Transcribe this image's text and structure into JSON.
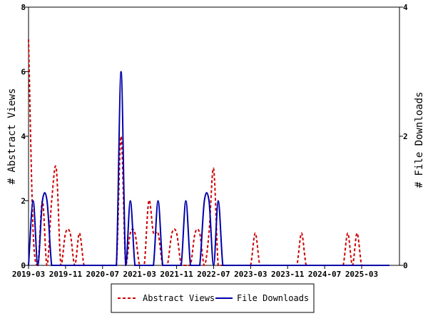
{
  "chart_data": {
    "type": "line",
    "x_ticks": [
      "2019-03",
      "2019-11",
      "2020-07",
      "2021-03",
      "2021-11",
      "2022-07",
      "2023-03",
      "2023-11",
      "2024-07",
      "2025-03"
    ],
    "y_left": {
      "label": "# Abstract Views",
      "range": [
        0,
        8
      ],
      "ticks": [
        0,
        2,
        4,
        6,
        8
      ]
    },
    "y_right": {
      "label": "# File Downloads",
      "range": [
        0,
        4
      ],
      "ticks": [
        0,
        2,
        4
      ]
    },
    "grid": false,
    "legend_position": "bottom",
    "series": [
      {
        "name": "Abstract Views",
        "axis": "left",
        "color": "#cc0000",
        "style": "dashed",
        "x": [
          "2019-03",
          "2019-04",
          "2019-05",
          "2019-06",
          "2019-07",
          "2019-08",
          "2019-09",
          "2019-10",
          "2019-11",
          "2019-12",
          "2020-01",
          "2020-02",
          "2020-03",
          "2020-04",
          "2020-05",
          "2020-06",
          "2020-07",
          "2020-08",
          "2020-09",
          "2020-10",
          "2020-11",
          "2020-12",
          "2021-01",
          "2021-02",
          "2021-03",
          "2021-04",
          "2021-05",
          "2021-06",
          "2021-07",
          "2021-08",
          "2021-09",
          "2021-10",
          "2021-11",
          "2021-12",
          "2022-01",
          "2022-02",
          "2022-03",
          "2022-04",
          "2022-05",
          "2022-06",
          "2022-07",
          "2022-08",
          "2022-09",
          "2022-10",
          "2022-11",
          "2022-12",
          "2023-01",
          "2023-02",
          "2023-03",
          "2023-04",
          "2023-05",
          "2023-06",
          "2023-07",
          "2023-08",
          "2023-09",
          "2023-10",
          "2023-11",
          "2023-12",
          "2024-01",
          "2024-02",
          "2024-03",
          "2024-04",
          "2024-05",
          "2024-06",
          "2024-07",
          "2024-08",
          "2024-09",
          "2024-10",
          "2024-11",
          "2024-12",
          "2025-01",
          "2025-02",
          "2025-03",
          "2025-04",
          "2025-05",
          "2025-06",
          "2025-07",
          "2025-08",
          "2025-09"
        ],
        "values": [
          7,
          1,
          0,
          2,
          0,
          2,
          3,
          0,
          1,
          1,
          0,
          1,
          0,
          0,
          0,
          0,
          0,
          0,
          0,
          0,
          4,
          0,
          1,
          1,
          0,
          0,
          2,
          1,
          1,
          0,
          0,
          1,
          1,
          0,
          0,
          0,
          1,
          1,
          0,
          1,
          3,
          0,
          0,
          0,
          0,
          0,
          0,
          0,
          0,
          1,
          0,
          0,
          0,
          0,
          0,
          0,
          0,
          0,
          0,
          1,
          0,
          0,
          0,
          0,
          0,
          0,
          0,
          0,
          0,
          1,
          0,
          1,
          0,
          0,
          0,
          0,
          0,
          0,
          0
        ]
      },
      {
        "name": "File Downloads",
        "axis": "right",
        "color": "#0000aa",
        "style": "solid",
        "x": [
          "2019-03",
          "2019-04",
          "2019-05",
          "2019-06",
          "2019-07",
          "2019-08",
          "2019-09",
          "2019-10",
          "2019-11",
          "2019-12",
          "2020-01",
          "2020-02",
          "2020-03",
          "2020-04",
          "2020-05",
          "2020-06",
          "2020-07",
          "2020-08",
          "2020-09",
          "2020-10",
          "2020-11",
          "2020-12",
          "2021-01",
          "2021-02",
          "2021-03",
          "2021-04",
          "2021-05",
          "2021-06",
          "2021-07",
          "2021-08",
          "2021-09",
          "2021-10",
          "2021-11",
          "2021-12",
          "2022-01",
          "2022-02",
          "2022-03",
          "2022-04",
          "2022-05",
          "2022-06",
          "2022-07",
          "2022-08",
          "2022-09",
          "2022-10",
          "2022-11",
          "2022-12",
          "2023-01",
          "2023-02",
          "2023-03",
          "2023-04",
          "2023-05",
          "2023-06",
          "2023-07",
          "2023-08",
          "2023-09",
          "2023-10",
          "2023-11",
          "2023-12",
          "2024-01",
          "2024-02",
          "2024-03",
          "2024-04",
          "2024-05",
          "2024-06",
          "2024-07",
          "2024-08",
          "2024-09",
          "2024-10",
          "2024-11",
          "2024-12",
          "2025-01",
          "2025-02",
          "2025-03",
          "2025-04",
          "2025-05",
          "2025-06",
          "2025-07",
          "2025-08",
          "2025-09"
        ],
        "values": [
          0,
          1,
          0,
          1,
          1,
          0,
          0,
          0,
          0,
          0,
          0,
          0,
          0,
          0,
          0,
          0,
          0,
          0,
          0,
          0,
          3,
          0,
          1,
          0,
          0,
          0,
          0,
          0,
          1,
          0,
          0,
          0,
          0,
          0,
          1,
          0,
          0,
          0,
          1,
          1,
          0,
          1,
          0,
          0,
          0,
          0,
          0,
          0,
          0,
          0,
          0,
          0,
          0,
          0,
          0,
          0,
          0,
          0,
          0,
          0,
          0,
          0,
          0,
          0,
          0,
          0,
          0,
          0,
          0,
          0,
          0,
          0,
          0,
          0,
          0,
          0,
          0,
          0,
          0
        ]
      }
    ]
  }
}
